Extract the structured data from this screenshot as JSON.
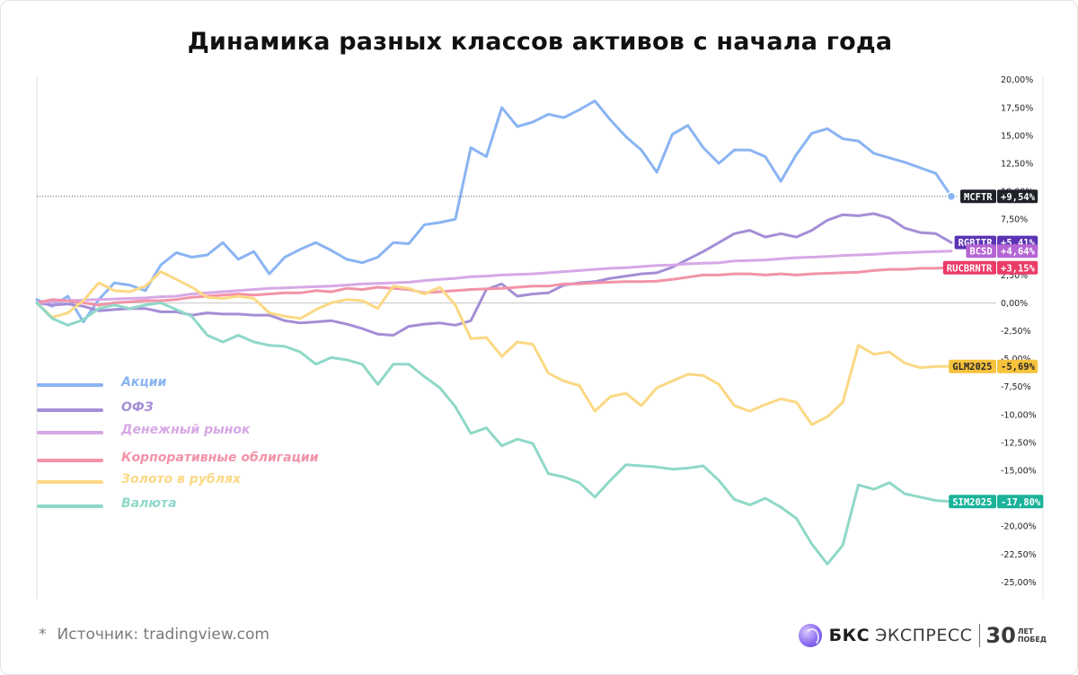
{
  "title": "Динамика разных классов активов с начала года",
  "source": {
    "star": "*",
    "text": "Источник: tradingview.com"
  },
  "brand": {
    "bold": "БКС",
    "name": "ЭКСПРЕСС",
    "years": "30",
    "sub_top": "ЛЕТ",
    "sub_bottom": "ПОБЕД"
  },
  "chart_data": {
    "type": "line",
    "title": "Динамика разных классов активов с начала года",
    "xlabel": "",
    "ylabel": "",
    "ylim": [
      -26.5,
      20.3
    ],
    "y_ticks": [
      20,
      17.5,
      15,
      12.5,
      10,
      7.5,
      5,
      2.5,
      0,
      -2.5,
      -5,
      -7.5,
      -10,
      -12.5,
      -15,
      -17.5,
      -20,
      -22.5,
      -25
    ],
    "y_tick_labels": [
      "20,00%",
      "17,50%",
      "15,00%",
      "12,50%",
      "10,00%",
      "7,50%",
      "5,00%",
      "2,50%",
      "0,00%",
      "-2,50%",
      "-5,00%",
      "-7,50%",
      "-10,00%",
      "-12,50%",
      "-15,00%",
      "-17,50%",
      "-20,00%",
      "-22,50%",
      "-25,00%"
    ],
    "y_axis_position": "right",
    "x_points": 60,
    "grid": false,
    "legend_position": "left-middle",
    "series": [
      {
        "name": "Акции",
        "ticker": "MCFTR",
        "last_label": "+9,54%",
        "color": "#8ab4f3",
        "tag_color": "#1f2228",
        "values": [
          0.3,
          -0.3,
          0.6,
          -1.7,
          0.3,
          1.8,
          1.6,
          1.1,
          3.4,
          4.5,
          4.1,
          4.3,
          5.4,
          3.9,
          4.6,
          2.6,
          4.1,
          4.8,
          5.4,
          4.7,
          3.9,
          3.6,
          4.1,
          5.4,
          5.3,
          7.0,
          7.2,
          7.5,
          13.9,
          13.1,
          17.5,
          15.8,
          16.2,
          16.9,
          16.6,
          17.3,
          18.1,
          16.4,
          14.9,
          13.7,
          11.7,
          15.1,
          15.9,
          13.9,
          12.5,
          13.7,
          13.7,
          13.1,
          10.9,
          13.3,
          15.2,
          15.6,
          14.7,
          14.5,
          13.4,
          13.0,
          12.6,
          12.1,
          11.6,
          9.54
        ]
      },
      {
        "name": "ОФЗ",
        "ticker": "RGBITR",
        "last_label": "+5,41%",
        "color": "#a48ed6",
        "tag_color": "#5b33b4",
        "values": [
          0,
          -0.2,
          -0.1,
          -0.3,
          -0.7,
          -0.6,
          -0.5,
          -0.5,
          -0.8,
          -0.8,
          -1.1,
          -0.9,
          -1.0,
          -1.0,
          -1.1,
          -1.1,
          -1.6,
          -1.8,
          -1.7,
          -1.6,
          -1.9,
          -2.3,
          -2.8,
          -2.9,
          -2.1,
          -1.9,
          -1.8,
          -2.0,
          -1.6,
          1.2,
          1.7,
          0.6,
          0.8,
          0.9,
          1.6,
          1.8,
          1.9,
          2.2,
          2.4,
          2.6,
          2.7,
          3.2,
          3.9,
          4.6,
          5.4,
          6.2,
          6.5,
          5.9,
          6.2,
          5.9,
          6.5,
          7.4,
          7.9,
          7.8,
          8.0,
          7.6,
          6.7,
          6.3,
          6.2,
          5.41
        ]
      },
      {
        "name": "Денежный рынок",
        "ticker": "BCSD",
        "last_label": "+4,64%",
        "color": "#d7a8e6",
        "tag_color": "#b565d3",
        "values": [
          0,
          0.1,
          0.2,
          0.25,
          0.3,
          0.35,
          0.4,
          0.45,
          0.55,
          0.6,
          0.8,
          0.9,
          1.0,
          1.1,
          1.2,
          1.3,
          1.35,
          1.4,
          1.45,
          1.5,
          1.6,
          1.7,
          1.75,
          1.8,
          1.85,
          2.0,
          2.1,
          2.2,
          2.35,
          2.4,
          2.5,
          2.55,
          2.6,
          2.7,
          2.8,
          2.9,
          3.0,
          3.1,
          3.15,
          3.25,
          3.35,
          3.4,
          3.5,
          3.55,
          3.6,
          3.75,
          3.8,
          3.85,
          3.95,
          4.05,
          4.1,
          4.15,
          4.25,
          4.3,
          4.35,
          4.45,
          4.5,
          4.55,
          4.6,
          4.64
        ]
      },
      {
        "name": "Корпоративные облигации",
        "ticker": "RUCBRNTR",
        "last_label": "+3,15%",
        "color": "#f293a8",
        "tag_color": "#ea3b66",
        "values": [
          0,
          0.3,
          0.2,
          0.0,
          -0.2,
          0.0,
          0.1,
          0.2,
          0.2,
          0.3,
          0.5,
          0.6,
          0.7,
          0.8,
          0.7,
          0.8,
          0.9,
          0.9,
          1.1,
          1.0,
          1.3,
          1.2,
          1.4,
          1.3,
          1.2,
          0.9,
          1.0,
          1.1,
          1.2,
          1.25,
          1.3,
          1.4,
          1.5,
          1.5,
          1.7,
          1.7,
          1.8,
          1.85,
          1.9,
          1.9,
          1.95,
          2.1,
          2.3,
          2.5,
          2.5,
          2.6,
          2.6,
          2.5,
          2.6,
          2.5,
          2.6,
          2.65,
          2.7,
          2.75,
          2.9,
          3.0,
          3.0,
          3.1,
          3.1,
          3.15
        ]
      },
      {
        "name": "Золото в рублях",
        "ticker": "GLM2025",
        "last_label": "-5,69%",
        "color": "#fbd884",
        "tag_color": "#f7c23c",
        "values": [
          0,
          -1.3,
          -0.9,
          0.2,
          1.8,
          1.1,
          1.0,
          1.5,
          2.8,
          2.1,
          1.4,
          0.5,
          0.4,
          0.6,
          0.4,
          -0.9,
          -1.2,
          -1.4,
          -0.6,
          0.0,
          0.3,
          0.2,
          -0.5,
          1.5,
          1.3,
          0.8,
          1.4,
          -0.2,
          -3.2,
          -3.1,
          -4.8,
          -3.5,
          -3.7,
          -6.3,
          -7.0,
          -7.4,
          -9.7,
          -8.4,
          -8.1,
          -9.2,
          -7.6,
          -7.0,
          -6.4,
          -6.5,
          -7.3,
          -9.2,
          -9.7,
          -9.1,
          -8.6,
          -8.9,
          -10.9,
          -10.2,
          -8.9,
          -3.8,
          -4.6,
          -4.4,
          -5.4,
          -5.8,
          -5.7,
          -5.69
        ]
      },
      {
        "name": "Валюта",
        "ticker": "SIM2025",
        "last_label": "-17,80%",
        "color": "#8fd8c8",
        "tag_color": "#1bb39a",
        "values": [
          0,
          -1.4,
          -2.0,
          -1.5,
          -0.5,
          -0.2,
          -0.5,
          -0.2,
          0.0,
          -0.6,
          -1.2,
          -2.9,
          -3.5,
          -2.9,
          -3.5,
          -3.8,
          -3.9,
          -4.4,
          -5.5,
          -4.9,
          -5.1,
          -5.5,
          -7.3,
          -5.5,
          -5.5,
          -6.6,
          -7.6,
          -9.3,
          -11.7,
          -11.2,
          -12.8,
          -12.2,
          -12.6,
          -15.3,
          -15.6,
          -16.1,
          -17.4,
          -15.9,
          -14.5,
          -14.6,
          -14.7,
          -14.9,
          -14.8,
          -14.6,
          -15.9,
          -17.6,
          -18.1,
          -17.5,
          -18.3,
          -19.3,
          -21.6,
          -23.4,
          -21.7,
          -16.3,
          -16.7,
          -16.1,
          -17.1,
          -17.4,
          -17.7,
          -17.8
        ]
      }
    ]
  }
}
